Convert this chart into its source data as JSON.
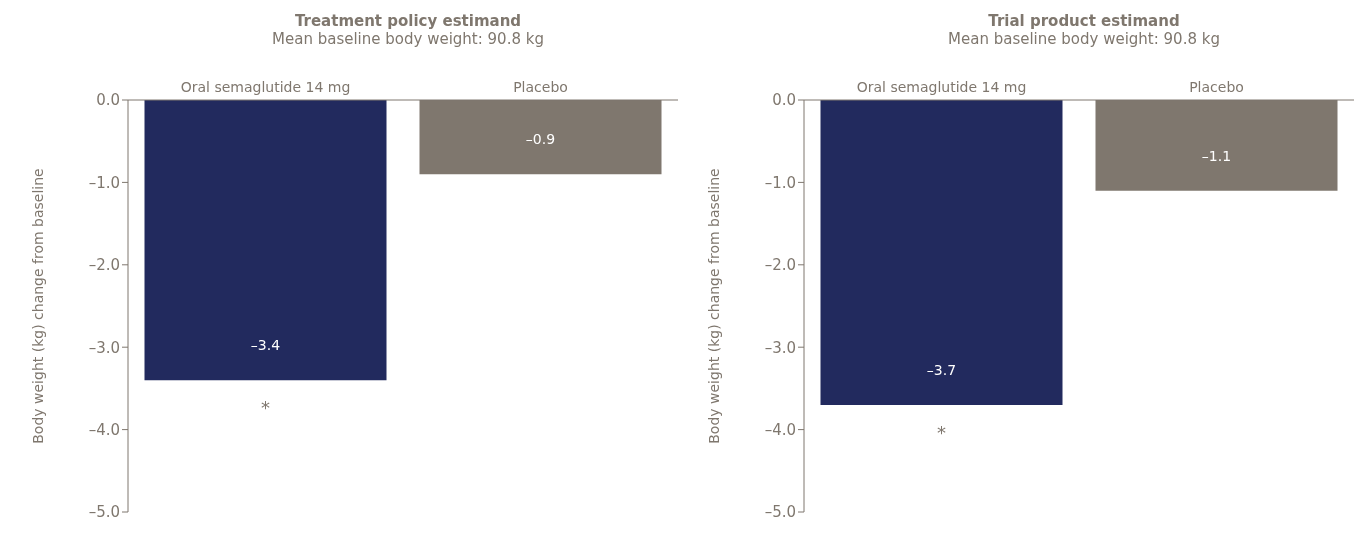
{
  "chart_data": [
    {
      "type": "bar",
      "title": "Treatment policy estimand",
      "subtitle": "Mean baseline body weight: 90.8 kg",
      "ylabel": "Body weight (kg) change from baseline",
      "categories": [
        "Oral semaglutide 14 mg",
        "Placebo"
      ],
      "values": [
        -3.4,
        -0.9
      ],
      "colors": [
        "#222a5e",
        "#7f776e"
      ],
      "ylim": [
        -5,
        0
      ],
      "yticks": [
        {
          "value": 0,
          "label": "0.0"
        },
        {
          "value": -1,
          "label": "–1.0"
        },
        {
          "value": -2,
          "label": "–2.0"
        },
        {
          "value": -3,
          "label": "–3.0"
        },
        {
          "value": -4,
          "label": "–4.0"
        },
        {
          "value": -5,
          "label": "–5.0"
        }
      ],
      "data_labels": true,
      "value_labels": [
        "–3.4",
        "–0.9"
      ],
      "annotations": [
        "*"
      ],
      "grid": false,
      "legend": false
    },
    {
      "type": "bar",
      "title": "Trial product estimand",
      "subtitle": "Mean baseline body weight: 90.8 kg",
      "ylabel": "Body weight (kg) change from baseline",
      "categories": [
        "Oral semaglutide 14 mg",
        "Placebo"
      ],
      "values": [
        -3.7,
        -1.1
      ],
      "colors": [
        "#222a5e",
        "#7f776e"
      ],
      "ylim": [
        -5,
        0
      ],
      "yticks": [
        {
          "value": 0,
          "label": "0.0"
        },
        {
          "value": -1,
          "label": "–1.0"
        },
        {
          "value": -2,
          "label": "–2.0"
        },
        {
          "value": -3,
          "label": "–3.0"
        },
        {
          "value": -4,
          "label": "–4.0"
        },
        {
          "value": -5,
          "label": "–5.0"
        }
      ],
      "data_labels": true,
      "value_labels": [
        "–3.7",
        "–1.1"
      ],
      "annotations": [
        "*"
      ],
      "grid": false,
      "legend": false
    }
  ]
}
